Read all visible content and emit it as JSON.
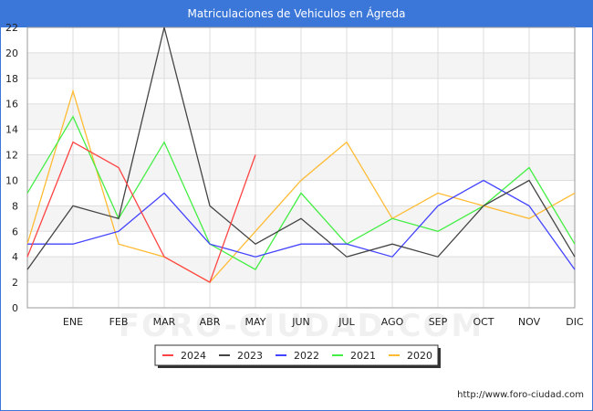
{
  "title": "Matriculaciones de Vehiculos en Ágreda",
  "footer_url": "http://www.foro-ciudad.com",
  "watermark": "FORO-CIUDAD.COM",
  "chart_data": {
    "type": "line",
    "title": "Matriculaciones de Vehiculos en Ágreda",
    "xlabel": "",
    "ylabel": "",
    "categories": [
      "",
      "ENE",
      "FEB",
      "MAR",
      "ABR",
      "MAY",
      "JUN",
      "JUL",
      "AGO",
      "SEP",
      "OCT",
      "NOV",
      "DIC"
    ],
    "ylim": [
      0,
      22
    ],
    "yticks": [
      0,
      2,
      4,
      6,
      8,
      10,
      12,
      14,
      16,
      18,
      20,
      22
    ],
    "grid": true,
    "legend_position": "bottom-center",
    "series": [
      {
        "name": "2024",
        "color": "#ff4444",
        "values": [
          4,
          13,
          11,
          4,
          2,
          12,
          null,
          null,
          null,
          null,
          null,
          null,
          null
        ]
      },
      {
        "name": "2023",
        "color": "#444444",
        "values": [
          3,
          8,
          7,
          22,
          8,
          5,
          7,
          4,
          5,
          4,
          8,
          10,
          4
        ]
      },
      {
        "name": "2022",
        "color": "#4444ff",
        "values": [
          5,
          5,
          6,
          9,
          5,
          4,
          5,
          5,
          4,
          8,
          10,
          8,
          3
        ]
      },
      {
        "name": "2021",
        "color": "#44ee44",
        "values": [
          9,
          15,
          7,
          13,
          5,
          3,
          9,
          5,
          7,
          6,
          8,
          11,
          5
        ]
      },
      {
        "name": "2020",
        "color": "#ffbb33",
        "values": [
          5,
          17,
          5,
          4,
          2,
          6,
          10,
          13,
          7,
          9,
          8,
          7,
          9
        ]
      }
    ]
  }
}
